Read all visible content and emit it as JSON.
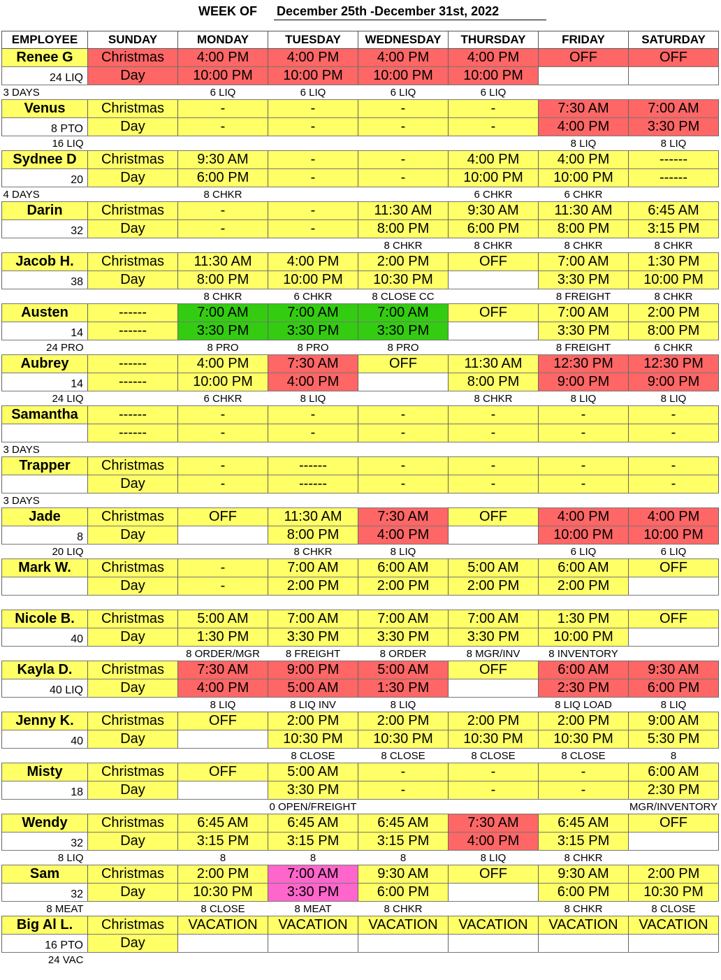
{
  "title": {
    "label": "WEEK OF",
    "value": "December 25th -December 31st, 2022"
  },
  "headers": [
    "EMPLOYEE",
    "SUNDAY",
    "MONDAY",
    "TUESDAY",
    "WEDNESDAY",
    "THURSDAY",
    "FRIDAY",
    "SATURDAY"
  ],
  "employees": [
    {
      "name": "Renee G",
      "hours": "24 LIQ",
      "note": "3 DAYS",
      "line1": [
        "Christmas",
        "4:00 PM",
        "4:00 PM",
        "4:00 PM",
        "4:00 PM",
        "OFF",
        "OFF"
      ],
      "line2": [
        "Day",
        "10:00 PM",
        "10:00 PM",
        "10:00 PM",
        "10:00 PM",
        "",
        ""
      ],
      "labels": [
        "",
        "6 LIQ",
        "6 LIQ",
        "6 LIQ",
        "6 LIQ",
        "",
        ""
      ],
      "colors": [
        "r",
        "r",
        "r",
        "r",
        "r",
        "r",
        "r"
      ],
      "colors2": [
        "r",
        "r",
        "r",
        "r",
        "r",
        "w",
        "w"
      ]
    },
    {
      "name": "Venus",
      "hours": "8 PTO",
      "note": "16 LIQ",
      "line1": [
        "Christmas",
        "-",
        "-",
        "-",
        "-",
        "7:30 AM",
        "7:00 AM"
      ],
      "line2": [
        "Day",
        "-",
        "-",
        "-",
        "-",
        "4:00 PM",
        "3:30 PM"
      ],
      "labels": [
        "",
        "",
        "",
        "",
        "",
        "8 LIQ",
        "8 LIQ"
      ],
      "colors": [
        "y",
        "y",
        "y",
        "y",
        "y",
        "r",
        "r"
      ],
      "colors2": [
        "y",
        "y",
        "y",
        "y",
        "y",
        "r",
        "r"
      ]
    },
    {
      "name": "Sydnee D",
      "hours": "20",
      "note": "4 DAYS",
      "line1": [
        "Christmas",
        "9:30 AM",
        "-",
        "-",
        "4:00 PM",
        "4:00 PM",
        "------"
      ],
      "line2": [
        "Day",
        "6:00 PM",
        "-",
        "-",
        "10:00 PM",
        "10:00 PM",
        "------"
      ],
      "labels": [
        "",
        "8 CHKR",
        "",
        "",
        "6 CHKR",
        "6 CHKR",
        ""
      ],
      "colors": [
        "y",
        "y",
        "y",
        "y",
        "y",
        "y",
        "y"
      ],
      "colors2": [
        "y",
        "y",
        "y",
        "y",
        "y",
        "y",
        "y"
      ]
    },
    {
      "name": "Darin",
      "hours": "32",
      "note": "",
      "line1": [
        "Christmas",
        "-",
        "-",
        "11:30 AM",
        "9:30 AM",
        "11:30 AM",
        "6:45 AM"
      ],
      "line2": [
        "Day",
        "-",
        "-",
        "8:00 PM",
        "6:00 PM",
        "8:00 PM",
        "3:15 PM"
      ],
      "labels": [
        "",
        "",
        "",
        "8 CHKR",
        "8 CHKR",
        "8 CHKR",
        "8 CHKR"
      ],
      "colors": [
        "y",
        "y",
        "y",
        "y",
        "y",
        "y",
        "y"
      ],
      "colors2": [
        "y",
        "y",
        "y",
        "y",
        "y",
        "y",
        "y"
      ]
    },
    {
      "name": "Jacob H.",
      "hours": "38",
      "note": "",
      "line1": [
        "Christmas",
        "11:30 AM",
        "4:00 PM",
        "2:00 PM",
        "OFF",
        "7:00 AM",
        "1:30 PM"
      ],
      "line2": [
        "Day",
        "8:00 PM",
        "10:00 PM",
        "10:30 PM",
        "",
        "3:30 PM",
        "10:00 PM"
      ],
      "labels": [
        "",
        "8 CHKR",
        "6 CHKR",
        "8 CLOSE CC",
        "",
        "8 FREIGHT",
        "8 CHKR"
      ],
      "colors": [
        "y",
        "y",
        "y",
        "y",
        "y",
        "y",
        "y"
      ],
      "colors2": [
        "y",
        "y",
        "y",
        "y",
        "w",
        "y",
        "y"
      ]
    },
    {
      "name": "Austen",
      "hours": "14",
      "note": "24 PRO",
      "line1": [
        "------",
        "7:00 AM",
        "7:00 AM",
        "7:00 AM",
        "OFF",
        "7:00 AM",
        "2:00 PM"
      ],
      "line2": [
        "------",
        "3:30 PM",
        "3:30 PM",
        "3:30 PM",
        "",
        "3:30 PM",
        "8:00 PM"
      ],
      "labels": [
        "",
        "8 PRO",
        "8 PRO",
        "8 PRO",
        "",
        "8 FREIGHT",
        "6 CHKR"
      ],
      "colors": [
        "y",
        "g",
        "g",
        "g",
        "y",
        "y",
        "y"
      ],
      "colors2": [
        "y",
        "g",
        "g",
        "g",
        "w",
        "y",
        "y"
      ]
    },
    {
      "name": "Aubrey",
      "hours": "14",
      "note": "24 LIQ",
      "line1": [
        "------",
        "4:00 PM",
        "7:30 AM",
        "OFF",
        "11:30 AM",
        "12:30 PM",
        "12:30 PM"
      ],
      "line2": [
        "------",
        "10:00 PM",
        "4:00 PM",
        "",
        "8:00 PM",
        "9:00 PM",
        "9:00 PM"
      ],
      "labels": [
        "",
        "6 CHKR",
        "8 LIQ",
        "",
        "8 CHKR",
        "8 LIQ",
        "8 LIQ"
      ],
      "colors": [
        "y",
        "y",
        "r",
        "y",
        "y",
        "r",
        "r"
      ],
      "colors2": [
        "y",
        "y",
        "r",
        "w",
        "y",
        "r",
        "r"
      ]
    },
    {
      "name": "Samantha",
      "hours": "",
      "note": "3 DAYS",
      "line1": [
        "------",
        "-",
        "-",
        "-",
        "-",
        "-",
        "-"
      ],
      "line2": [
        "------",
        "-",
        "-",
        "-",
        "-",
        "-",
        "-"
      ],
      "labels": [
        "",
        "",
        "",
        "",
        "",
        "",
        ""
      ],
      "colors": [
        "y",
        "y",
        "y",
        "y",
        "y",
        "y",
        "y"
      ],
      "colors2": [
        "y",
        "y",
        "y",
        "y",
        "y",
        "y",
        "y"
      ]
    },
    {
      "name": "Trapper",
      "hours": "",
      "note": "3 DAYS",
      "line1": [
        "Christmas",
        "-",
        "------",
        "-",
        "-",
        "-",
        "-"
      ],
      "line2": [
        "Day",
        "-",
        "------",
        "-",
        "-",
        "-",
        "-"
      ],
      "labels": [
        "",
        "",
        "",
        "",
        "",
        "",
        ""
      ],
      "colors": [
        "y",
        "y",
        "y",
        "y",
        "y",
        "y",
        "y"
      ],
      "colors2": [
        "y",
        "y",
        "y",
        "y",
        "y",
        "y",
        "y"
      ]
    },
    {
      "name": "Jade",
      "hours": "8",
      "note": "20 LIQ",
      "line1": [
        "Christmas",
        "OFF",
        "11:30 AM",
        "7:30 AM",
        "OFF",
        "4:00 PM",
        "4:00 PM"
      ],
      "line2": [
        "Day",
        "",
        "8:00 PM",
        "4:00 PM",
        "",
        "10:00 PM",
        "10:00 PM"
      ],
      "labels": [
        "",
        "",
        "8 CHKR",
        "8 LIQ",
        "",
        "6 LIQ",
        "6 LIQ"
      ],
      "colors": [
        "y",
        "y",
        "y",
        "r",
        "y",
        "r",
        "r"
      ],
      "colors2": [
        "y",
        "w",
        "y",
        "r",
        "w",
        "r",
        "r"
      ]
    },
    {
      "name": "Mark W.",
      "hours": "",
      "note": "",
      "line1": [
        "Christmas",
        "-",
        "7:00 AM",
        "6:00 AM",
        "5:00 AM",
        "6:00 AM",
        "OFF"
      ],
      "line2": [
        "Day",
        "-",
        "2:00 PM",
        "2:00 PM",
        "2:00 PM",
        "2:00 PM",
        ""
      ],
      "labels": [
        "",
        "",
        "",
        "",
        "",
        "",
        ""
      ],
      "colors": [
        "y",
        "y",
        "y",
        "y",
        "y",
        "y",
        "y"
      ],
      "colors2": [
        "y",
        "y",
        "y",
        "y",
        "y",
        "y",
        "w"
      ]
    },
    {
      "name": "Nicole B.",
      "hours": "40",
      "note": "",
      "line1": [
        "Christmas",
        "5:00 AM",
        "7:00 AM",
        "7:00 AM",
        "7:00 AM",
        "1:30 PM",
        "OFF"
      ],
      "line2": [
        "Day",
        "1:30 PM",
        "3:30 PM",
        "3:30 PM",
        "3:30 PM",
        "10:00 PM",
        ""
      ],
      "labels": [
        "",
        "8 ORDER/MGR",
        "8 FREIGHT",
        "8 ORDER",
        "8 MGR/INV",
        "8 INVENTORY",
        ""
      ],
      "colors": [
        "y",
        "y",
        "y",
        "y",
        "y",
        "y",
        "y"
      ],
      "colors2": [
        "y",
        "y",
        "y",
        "y",
        "y",
        "y",
        "w"
      ]
    },
    {
      "name": "Kayla D.",
      "hours": "40 LIQ",
      "note": "",
      "line1": [
        "Christmas",
        "7:30 AM",
        "9:00 PM",
        "5:00 AM",
        "OFF",
        "6:00 AM",
        "9:30 AM"
      ],
      "line2": [
        "Day",
        "4:00 PM",
        "5:00 AM",
        "1:30 PM",
        "",
        "2:30 PM",
        "6:00 PM"
      ],
      "labels": [
        "",
        "8 LIQ",
        "8 LIQ INV",
        "8 LIQ",
        "",
        "8 LIQ LOAD",
        "8 LIQ"
      ],
      "colors": [
        "y",
        "r",
        "r",
        "r",
        "y",
        "r",
        "r"
      ],
      "colors2": [
        "y",
        "r",
        "r",
        "r",
        "w",
        "r",
        "r"
      ]
    },
    {
      "name": "Jenny K.",
      "hours": "40",
      "note": "",
      "line1": [
        "Christmas",
        "OFF",
        "2:00 PM",
        "2:00 PM",
        "2:00 PM",
        "2:00 PM",
        "9:00 AM"
      ],
      "line2": [
        "Day",
        "",
        "10:30 PM",
        "10:30 PM",
        "10:30 PM",
        "10:30 PM",
        "5:30 PM"
      ],
      "labels": [
        "",
        "",
        "8 CLOSE",
        "8 CLOSE",
        "8 CLOSE",
        "8 CLOSE",
        "8"
      ],
      "colors": [
        "y",
        "y",
        "y",
        "y",
        "y",
        "y",
        "y"
      ],
      "colors2": [
        "y",
        "w",
        "y",
        "y",
        "y",
        "y",
        "y"
      ]
    },
    {
      "name": "Misty",
      "hours": "18",
      "note": "",
      "line1": [
        "Christmas",
        "OFF",
        "5:00 AM",
        "-",
        "-",
        "-",
        "6:00 AM"
      ],
      "line2": [
        "Day",
        "",
        "3:30 PM",
        "-",
        "-",
        "-",
        "2:30 PM"
      ],
      "labels": [
        "",
        "",
        "0 OPEN/FREIGHT",
        "",
        "",
        "",
        "MGR/INVENTORY"
      ],
      "colors": [
        "y",
        "y",
        "y",
        "y",
        "y",
        "y",
        "y"
      ],
      "colors2": [
        "y",
        "w",
        "y",
        "y",
        "y",
        "y",
        "y"
      ]
    },
    {
      "name": "Wendy",
      "hours": "32",
      "note": "8 LIQ",
      "line1": [
        "Christmas",
        "6:45 AM",
        "6:45 AM",
        "6:45 AM",
        "7:30 AM",
        "6:45 AM",
        "OFF"
      ],
      "line2": [
        "Day",
        "3:15 PM",
        "3:15 PM",
        "3:15 PM",
        "4:00 PM",
        "3:15 PM",
        ""
      ],
      "labels": [
        "",
        "8",
        "8",
        "8",
        "8 LIQ",
        "8 CHKR",
        ""
      ],
      "colors": [
        "y",
        "y",
        "y",
        "y",
        "r",
        "y",
        "y"
      ],
      "colors2": [
        "y",
        "y",
        "y",
        "y",
        "r",
        "y",
        "w"
      ]
    },
    {
      "name": "Sam",
      "hours": "32",
      "note": "8 MEAT",
      "line1": [
        "Christmas",
        "2:00 PM",
        "7:00 AM",
        "9:30 AM",
        "OFF",
        "9:30 AM",
        "2:00 PM"
      ],
      "line2": [
        "Day",
        "10:30 PM",
        "3:30 PM",
        "6:00 PM",
        "",
        "6:00 PM",
        "10:30 PM"
      ],
      "labels": [
        "",
        "8 CLOSE",
        "8 MEAT",
        "8 CHKR",
        "",
        "8 CHKR",
        "8 CLOSE"
      ],
      "colors": [
        "y",
        "y",
        "p",
        "y",
        "y",
        "y",
        "y"
      ],
      "colors2": [
        "y",
        "y",
        "p",
        "y",
        "w",
        "y",
        "y"
      ]
    },
    {
      "name": "Big Al L.",
      "hours": "16 PTO",
      "note": "24 VAC",
      "line1": [
        "Christmas",
        "VACATION",
        "VACATION",
        "VACATION",
        "VACATION",
        "VACATION",
        "VACATION"
      ],
      "line2": [
        "Day",
        "",
        "",
        "",
        "",
        "",
        ""
      ],
      "labels": [
        "",
        "",
        "",
        "",
        "",
        "",
        ""
      ],
      "colors": [
        "y",
        "y",
        "y",
        "y",
        "y",
        "y",
        "y"
      ],
      "colors2": [
        "y",
        "w",
        "w",
        "w",
        "w",
        "w",
        "w"
      ]
    }
  ]
}
